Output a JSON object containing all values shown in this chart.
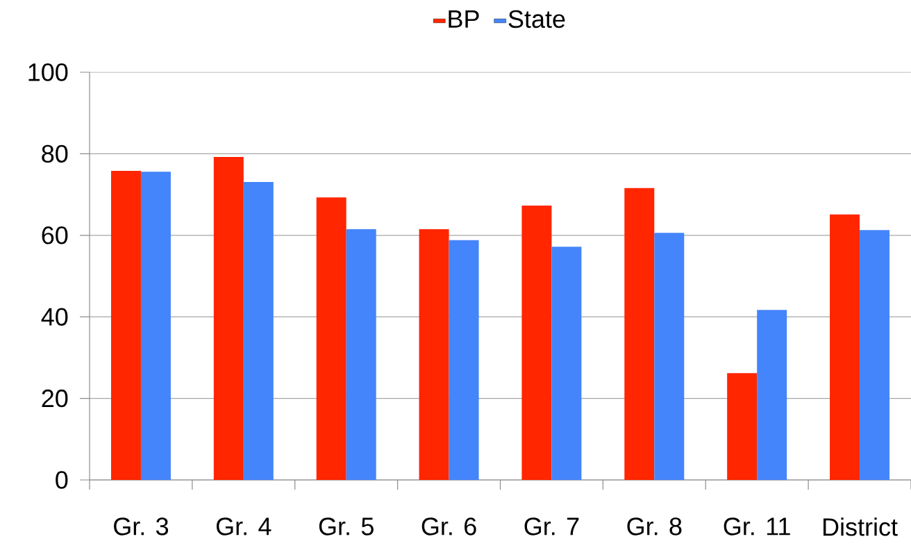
{
  "chart_data": {
    "type": "bar",
    "categories": [
      "Gr. 3",
      "Gr. 4",
      "Gr. 5",
      "Gr. 6",
      "Gr. 7",
      "Gr. 8",
      "Gr. 11",
      "District"
    ],
    "series": [
      {
        "name": "BP",
        "color": "#ff2600",
        "values": [
          75.8,
          79.2,
          69.3,
          61.5,
          67.3,
          71.6,
          26.2,
          65.1
        ]
      },
      {
        "name": "State",
        "color": "#4485fb",
        "values": [
          75.6,
          73.1,
          61.5,
          58.8,
          57.2,
          60.6,
          41.7,
          61.3
        ]
      }
    ],
    "ylim": [
      0,
      100
    ],
    "yticks": [
      0,
      20,
      40,
      60,
      80,
      100
    ],
    "grid": "y",
    "legend": "top"
  }
}
